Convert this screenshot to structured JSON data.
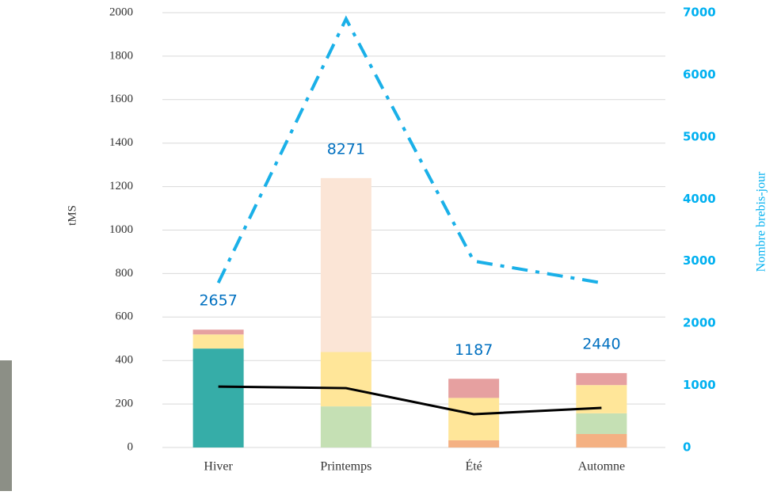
{
  "chart_data": {
    "type": "bar",
    "categories": [
      "Hiver",
      "Printemps",
      "Été",
      "Automne"
    ],
    "ylabel": "tMS",
    "y2label": "Nombre brebis-jour",
    "ylim": [
      0,
      2000
    ],
    "yticks": [
      0,
      200,
      400,
      600,
      800,
      1000,
      1200,
      1400,
      1600,
      1800,
      2000
    ],
    "y2lim": [
      0,
      7000
    ],
    "y2ticks": [
      0,
      1000,
      2000,
      3000,
      4000,
      5000,
      6000,
      7000
    ],
    "grid": true,
    "stacked": true,
    "series": [
      {
        "type": "bar",
        "color": "#36ada8",
        "values": [
          455,
          0,
          0,
          0
        ]
      },
      {
        "type": "bar",
        "color": "#f4b183",
        "values": [
          0,
          0,
          33,
          62
        ]
      },
      {
        "type": "bar",
        "color": "#c5e0b4",
        "values": [
          0,
          189,
          0,
          95
        ]
      },
      {
        "type": "bar",
        "color": "#ffe699",
        "values": [
          65,
          250,
          195,
          130
        ]
      },
      {
        "type": "bar",
        "color": "#e6a0a0",
        "values": [
          22,
          0,
          88,
          55
        ]
      },
      {
        "type": "bar",
        "color": "#fbe5d6",
        "values": [
          0,
          800,
          0,
          0
        ]
      },
      {
        "type": "line",
        "color": "#000000",
        "values": [
          280,
          273,
          153,
          182
        ]
      },
      {
        "type": "line",
        "color": "#1ab0e8",
        "dash": "dashdot",
        "axis": "y2",
        "values": [
          2650,
          6900,
          3000,
          2650
        ]
      }
    ],
    "annotations": [
      "2657",
      "8271",
      "1187",
      "2440"
    ]
  }
}
